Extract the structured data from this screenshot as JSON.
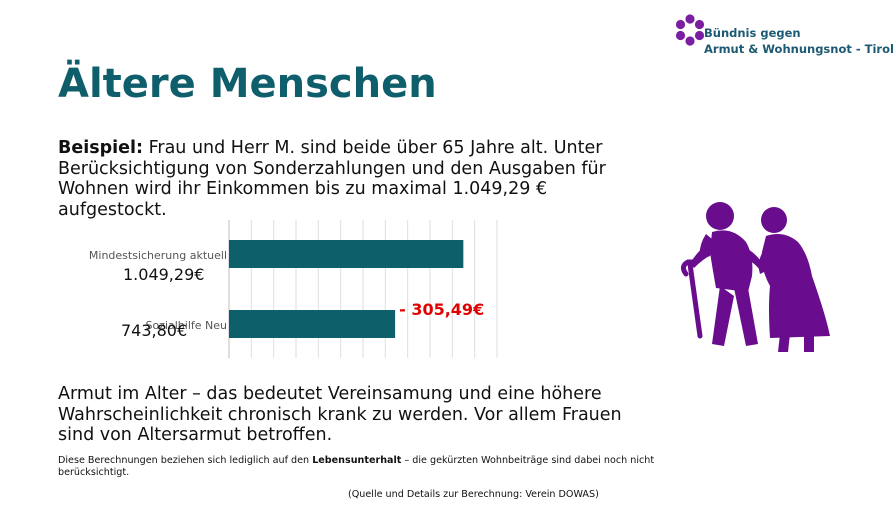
{
  "logo": {
    "line1": "Bündnis gegen",
    "line2": "Armut & Wohnungsnot - Tirol",
    "dot_color": "#7b1fa2",
    "text_color": "#1d5a73"
  },
  "title": "Ältere Menschen",
  "intro": {
    "label": "Beispiel:",
    "text": " Frau und Herr M. sind beide über 65 Jahre alt. Unter Berücksichtigung von Sonderzahlungen und den Ausgaben für Wohnen wird ihr Einkommen bis zu maximal 1.049,29 € aufgestockt."
  },
  "chart_data": {
    "type": "bar",
    "orientation": "horizontal",
    "categories": [
      "Mindestsicherung aktuell",
      "Sozialhilfe Neu"
    ],
    "values": [
      1049.29,
      743.8
    ],
    "value_labels": [
      "1.049,29€",
      "743,80€"
    ],
    "difference_label": "- 305,49€",
    "bar_color": "#0d5f6a",
    "difference_color": "#e00000",
    "xlim": [
      0,
      1200
    ],
    "grid": true,
    "title": "",
    "xlabel": "",
    "ylabel": ""
  },
  "illustration": {
    "icon": "elderly-couple-icon",
    "color": "#6a0c8e"
  },
  "paragraph": "Armut im Alter – das bedeutet  Vereinsamung und eine höhere Wahrscheinlichkeit chronisch krank zu werden. Vor allem Frauen sind von Altersarmut betroffen.",
  "note": {
    "before": "Diese Berechnungen beziehen sich lediglich auf den ",
    "bold": "Lebensunterhalt",
    "after": " – die gekürzten Wohnbeiträge sind dabei noch nicht berücksichtigt."
  },
  "source": "(Quelle und Details zur Berechnung: Verein DOWAS)"
}
